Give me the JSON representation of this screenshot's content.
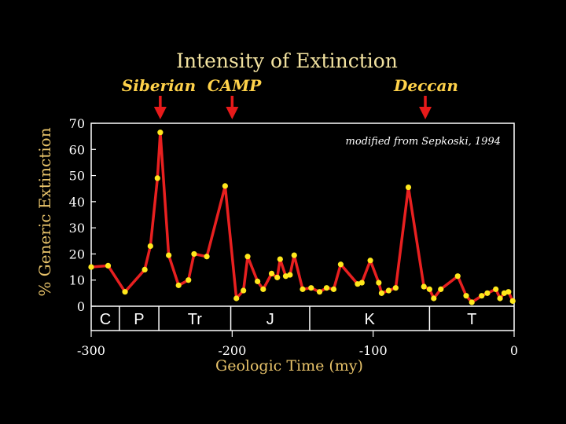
{
  "colors": {
    "background": "#000000",
    "title": "#f2e2a0",
    "axis_label": "#e8c36a",
    "event_label": "#ffd24a",
    "line": "#e82020",
    "marker": "#ffe81c",
    "frame": "#ffffff",
    "arrow": "#e81a1a"
  },
  "chart_data": {
    "type": "line",
    "title": "Intensity of Extinction",
    "xlabel": "Geologic Time (my)",
    "ylabel": "% Generic Extinction",
    "note": "modified from Sepkoski, 1994",
    "xlim": [
      -300,
      0
    ],
    "ylim": [
      0,
      70
    ],
    "x_ticks": [
      -300,
      -200,
      -100,
      0
    ],
    "y_ticks": [
      0,
      10,
      20,
      30,
      40,
      50,
      60,
      70
    ],
    "x_tick_labels": [
      "-300",
      "-200",
      "-100",
      "0"
    ],
    "y_tick_labels": [
      "0",
      "10",
      "20",
      "30",
      "40",
      "50",
      "60",
      "70"
    ],
    "grid": false,
    "series": [
      {
        "x": [
          -300,
          -288,
          -276,
          -262,
          -258,
          -253,
          -251,
          -245,
          -238,
          -231,
          -227,
          -218,
          -205,
          -197,
          -192,
          -189,
          -182,
          -178,
          -172,
          -168,
          -166,
          -162,
          -159,
          -156,
          -150,
          -144,
          -138,
          -133,
          -128,
          -123,
          -111,
          -108,
          -102,
          -96,
          -94,
          -89,
          -84,
          -75,
          -64,
          -60,
          -57,
          -52,
          -40,
          -34,
          -30,
          -23,
          -19,
          -13,
          -10,
          -7,
          -4,
          -1
        ],
        "y": [
          15,
          15.5,
          5.5,
          14,
          23,
          49,
          66.5,
          19.5,
          8,
          10,
          20,
          19,
          46,
          3,
          6,
          19,
          9.5,
          6.5,
          12.5,
          11,
          18,
          11.5,
          12,
          19.5,
          6.5,
          7,
          5.5,
          7,
          6.5,
          16,
          8.5,
          9,
          17.5,
          9,
          5,
          6,
          7,
          45.5,
          7.5,
          6.5,
          3,
          6.5,
          11.5,
          4,
          1.5,
          4,
          5,
          6.5,
          3,
          5,
          5.5,
          2
        ]
      }
    ],
    "periods": [
      {
        "label": "C",
        "start": -300,
        "end": -280
      },
      {
        "label": "P",
        "start": -280,
        "end": -252
      },
      {
        "label": "Tr",
        "start": -252,
        "end": -201
      },
      {
        "label": "J",
        "start": -201,
        "end": -145
      },
      {
        "label": "K",
        "start": -145,
        "end": -60
      },
      {
        "label": "T",
        "start": -60,
        "end": 0
      }
    ],
    "events": [
      {
        "label": "Siberian",
        "x": -251
      },
      {
        "label": "CAMP",
        "x": -200
      },
      {
        "label": "Deccan",
        "x": -63
      }
    ]
  }
}
